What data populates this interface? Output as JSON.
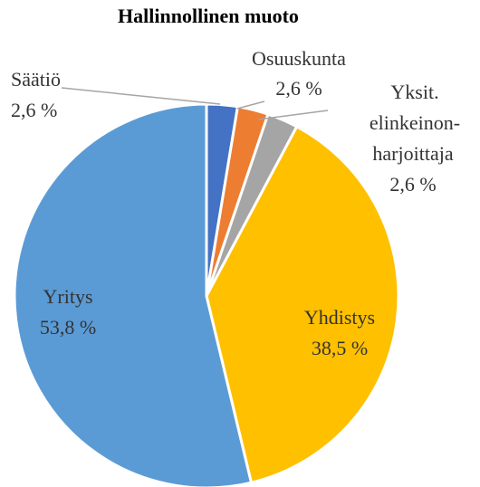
{
  "chart_data": {
    "type": "pie",
    "title": "Hallinnollinen muoto",
    "categories": [
      "Säätiö",
      "Osuuskunta",
      [
        "Yksit.",
        "elinkeinon-",
        "harjoittaja"
      ],
      "Yhdistys",
      "Yritys"
    ],
    "values": [
      2.6,
      2.6,
      2.6,
      38.5,
      53.8
    ],
    "value_labels": [
      "2,6 %",
      "2,6 %",
      "2,6 %",
      "38,5 %",
      "53,8 %"
    ],
    "colors": [
      "#4472c4",
      "#ed7d31",
      "#a5a5a5",
      "#ffc000",
      "#5b9bd5"
    ]
  }
}
